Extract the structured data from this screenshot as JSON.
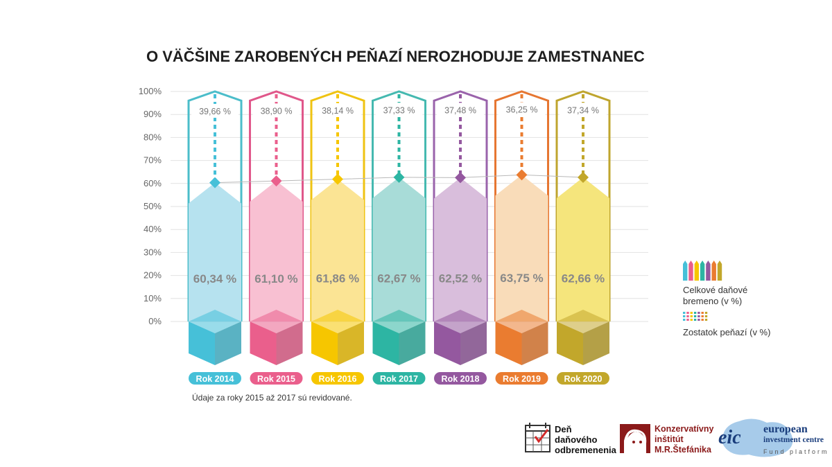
{
  "chart_data": {
    "type": "bar",
    "title": "O VÄČŠINE ZAROBENÝCH PEŇAZÍ NEROZHODUJE ZAMESTNANEC",
    "y_ticks": [
      "100%",
      "90%",
      "80%",
      "70%",
      "60%",
      "50%",
      "40%",
      "30%",
      "20%",
      "10%",
      "0%"
    ],
    "ylim": [
      0,
      100
    ],
    "grid": true,
    "categories": [
      "Rok 2014",
      "Rok 2015",
      "Rok 2016",
      "Rok 2017",
      "Rok 2018",
      "Rok 2019",
      "Rok 2020"
    ],
    "series": [
      {
        "name": "Celkové daňové bremeno (v %)",
        "values": [
          60.34,
          61.1,
          61.86,
          62.67,
          62.52,
          63.75,
          62.66
        ],
        "labels": [
          "60,34 %",
          "61,10 %",
          "61,86 %",
          "62,67 %",
          "62,52 %",
          "63,75 %",
          "62,66 %"
        ]
      },
      {
        "name": "Zostatok peňazí (v %)",
        "values": [
          39.66,
          38.9,
          38.14,
          37.33,
          37.48,
          36.25,
          37.34
        ],
        "labels": [
          "39,66 %",
          "38,90 %",
          "38,14 %",
          "37,33 %",
          "37,48 %",
          "36,25 %",
          "37,34 %"
        ]
      }
    ],
    "colors": {
      "main": [
        "#46c0d8",
        "#ea5f8c",
        "#f6c600",
        "#2db5a3",
        "#94589f",
        "#ea7c30",
        "#c2a72b"
      ],
      "light": [
        "#b6e2ef",
        "#f8c0d2",
        "#fbe494",
        "#a8dcd8",
        "#d9bedc",
        "#f9dcb9",
        "#f5e57c"
      ],
      "outline": [
        "#4bbdca",
        "#e0578a",
        "#efc312",
        "#45b9b0",
        "#9a63ab",
        "#e67631",
        "#bfa52e"
      ]
    },
    "legend_placement": "right",
    "note": "Údaje za roky 2015 až 2017 sú revidované."
  },
  "logos": {
    "dod_lines": [
      "Deň",
      "daňového",
      "odbremenenia"
    ],
    "ki_lines": [
      "Konzervatívny",
      "inštitút",
      "M.R.Štefánika"
    ],
    "eic_mark": "eic",
    "eic_lines": [
      "european",
      "investment centre"
    ],
    "eic_tagline": "Fund platform"
  }
}
